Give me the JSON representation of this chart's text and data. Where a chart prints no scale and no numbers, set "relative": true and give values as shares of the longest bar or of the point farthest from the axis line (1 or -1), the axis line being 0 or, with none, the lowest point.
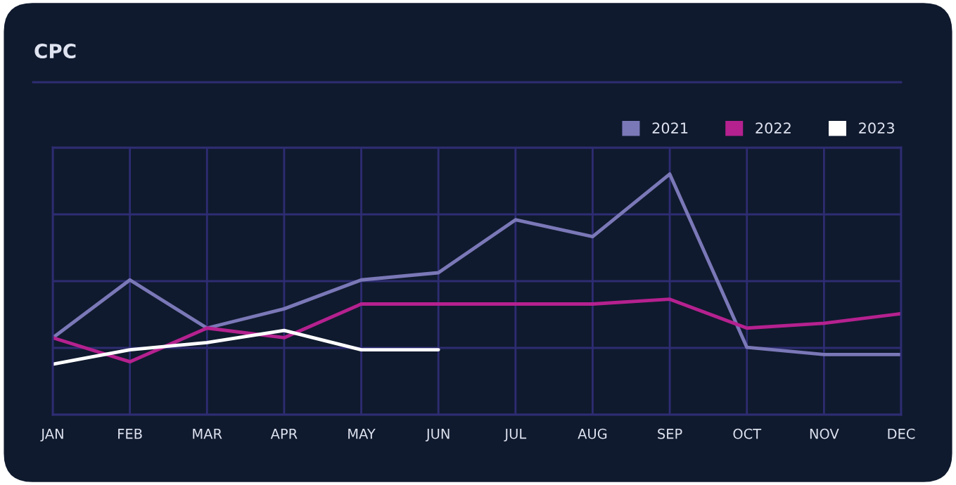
{
  "chart_data": {
    "type": "line",
    "title": "CPC",
    "relative": true,
    "grid": true,
    "legend": "top right",
    "tick_labels": "x",
    "marker": "none",
    "line_style": "solid",
    "categories": [
      "JAN",
      "FEB",
      "MAR",
      "APR",
      "MAY",
      "JUN",
      "JUL",
      "AUG",
      "SEP",
      "OCT",
      "NOV",
      "DEC"
    ],
    "series": [
      {
        "name": "2021",
        "color": "#7b78b8",
        "values": [
          0.32,
          0.56,
          0.36,
          0.44,
          0.56,
          0.59,
          0.81,
          0.74,
          1.0,
          0.28,
          0.25,
          0.25
        ]
      },
      {
        "name": "2022",
        "color": "#b5218f",
        "values": [
          0.32,
          0.22,
          0.36,
          0.32,
          0.46,
          0.46,
          0.46,
          0.46,
          0.48,
          0.36,
          0.38,
          0.42
        ]
      },
      {
        "name": "2023",
        "color": "#ffffff",
        "values": [
          0.21,
          0.27,
          0.3,
          0.35,
          0.27,
          0.27,
          null,
          null,
          null,
          null,
          null,
          null
        ]
      }
    ]
  }
}
